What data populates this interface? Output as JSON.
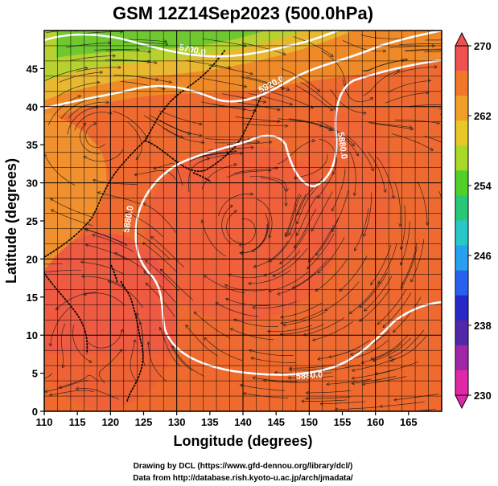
{
  "title": "GSM 12Z14Sep2023 (500.0hPa)",
  "xlabel": "Longitude (degrees)",
  "ylabel": "Latitude (degrees)",
  "x_ticks": [
    "110",
    "115",
    "120",
    "125",
    "130",
    "135",
    "140",
    "145",
    "150",
    "155",
    "160",
    "165"
  ],
  "y_ticks": [
    "0",
    "5",
    "10",
    "15",
    "20",
    "25",
    "30",
    "35",
    "40",
    "45"
  ],
  "colorbar": {
    "ticks": [
      "270",
      "262",
      "254",
      "246",
      "238",
      "230"
    ],
    "colors": [
      "#f05050",
      "#f07828",
      "#f0a028",
      "#e8c828",
      "#a8d828",
      "#50d028",
      "#28c878",
      "#28c8c8",
      "#28a0f0",
      "#2860f0",
      "#2828c8",
      "#5028a8",
      "#a028a8",
      "#e028a8"
    ]
  },
  "contours": [
    {
      "label": "5700.0"
    },
    {
      "label": "5820.0"
    },
    {
      "label": "5880.0"
    },
    {
      "label": "5880.0"
    },
    {
      "label": "5880.0"
    }
  ],
  "footer": {
    "line1": "Drawing by DCL (https://www.gfd-dennou.org/library/dcl/)",
    "line2": "Data from http://database.rish.kyoto-u.ac.jp/arch/jmadata/"
  }
}
